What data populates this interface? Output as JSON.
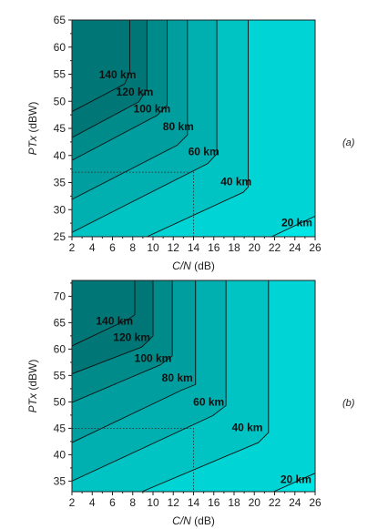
{
  "colors": {
    "bands": [
      "#00E5E5",
      "#00D4D4",
      "#00C3C3",
      "#00B0B0",
      "#009E9E",
      "#008B8B",
      "#007676"
    ],
    "contour_line": "#111111",
    "axis": "#222222",
    "dotted_marker": "#333333"
  },
  "chart_data": [
    {
      "type": "contour",
      "panel_tag": "(a)",
      "xlabel_var": "C/N",
      "xlabel_unit": " (dB)",
      "ylabel_var": "PTx",
      "ylabel_unit": " (dBW)",
      "xlim": [
        2,
        26
      ],
      "ylim": [
        25,
        65
      ],
      "x_ticks": [
        "2",
        "4",
        "6",
        "8",
        "10",
        "12",
        "14",
        "16",
        "18",
        "20",
        "22",
        "24",
        "26"
      ],
      "y_ticks": [
        "25",
        "30",
        "35",
        "40",
        "45",
        "50",
        "55",
        "60",
        "65"
      ],
      "grid": false,
      "contours": [
        {
          "label": "20 km",
          "points": [
            [
              21.7,
              25
            ],
            [
              26,
              28.8
            ]
          ]
        },
        {
          "label": "40 km",
          "points": [
            [
              9.4,
              25
            ],
            [
              18.9,
              33.2
            ],
            [
              19.4,
              34.2
            ],
            [
              19.4,
              65
            ]
          ]
        },
        {
          "label": "60 km",
          "points": [
            [
              2,
              25.8
            ],
            [
              15.4,
              38.5
            ],
            [
              16.3,
              40.3
            ],
            [
              16.3,
              65
            ]
          ]
        },
        {
          "label": "80 km",
          "points": [
            [
              2,
              31.9
            ],
            [
              12.4,
              41.9
            ],
            [
              13.4,
              43.8
            ],
            [
              13.4,
              65
            ]
          ]
        },
        {
          "label": "100 km",
          "points": [
            [
              2,
              39.1
            ],
            [
              10.4,
              47.4
            ],
            [
              11.4,
              49.3
            ],
            [
              11.4,
              65
            ]
          ]
        },
        {
          "label": "120 km",
          "points": [
            [
              2,
              43.3
            ],
            [
              8.6,
              49.9
            ],
            [
              9.4,
              52.2
            ],
            [
              9.4,
              65
            ]
          ]
        },
        {
          "label": "140 km",
          "points": [
            [
              2,
              48.1
            ],
            [
              7.2,
              53.2
            ],
            [
              7.7,
              55.3
            ],
            [
              7.7,
              65
            ]
          ]
        }
      ],
      "label_positions": [
        {
          "text": "20 km",
          "x": 24.2,
          "y": 27.5
        },
        {
          "text": "40 km",
          "x": 18.2,
          "y": 35.0
        },
        {
          "text": "60 km",
          "x": 15.0,
          "y": 40.6
        },
        {
          "text": "80 km",
          "x": 12.5,
          "y": 45.2
        },
        {
          "text": "100 km",
          "x": 9.9,
          "y": 48.5
        },
        {
          "text": "120 km",
          "x": 8.2,
          "y": 51.6
        },
        {
          "text": "140 km",
          "x": 6.5,
          "y": 54.8
        }
      ],
      "dotted_marker": {
        "x": 14,
        "y": 36.9
      }
    },
    {
      "type": "contour",
      "panel_tag": "(b)",
      "xlabel_var": "C/N",
      "xlabel_unit": " (dB)",
      "ylabel_var": "PTx",
      "ylabel_unit": " (dBW)",
      "xlim": [
        2,
        26
      ],
      "ylim": [
        33,
        73
      ],
      "x_ticks": [
        "2",
        "4",
        "6",
        "8",
        "10",
        "12",
        "14",
        "16",
        "18",
        "20",
        "22",
        "24",
        "26"
      ],
      "y_ticks": [
        "35",
        "40",
        "45",
        "50",
        "55",
        "60",
        "65",
        "70"
      ],
      "grid": false,
      "contours": [
        {
          "label": "20 km",
          "points": [
            [
              21.9,
              33
            ],
            [
              26,
              36.5
            ]
          ]
        },
        {
          "label": "40 km",
          "points": [
            [
              8.9,
              33
            ],
            [
              20.4,
              42.3
            ],
            [
              21.4,
              44.2
            ],
            [
              21.4,
              73
            ]
          ]
        },
        {
          "label": "60 km",
          "points": [
            [
              2,
              35.0
            ],
            [
              15.9,
              47.4
            ],
            [
              17.2,
              49.3
            ],
            [
              17.2,
              73
            ]
          ]
        },
        {
          "label": "80 km",
          "points": [
            [
              2,
              42.3
            ],
            [
              12.8,
              52.2
            ],
            [
              14.2,
              53.3
            ],
            [
              14.2,
              73
            ]
          ]
        },
        {
          "label": "100 km",
          "points": [
            [
              2,
              49.9
            ],
            [
              10.7,
              57.0
            ],
            [
              11.9,
              58.7
            ],
            [
              11.9,
              73
            ]
          ]
        },
        {
          "label": "120 km",
          "points": [
            [
              2,
              55.3
            ],
            [
              8.9,
              60.4
            ],
            [
              10.0,
              62.5
            ],
            [
              10.0,
              73
            ]
          ]
        },
        {
          "label": "140 km",
          "points": [
            [
              2,
              60.6
            ],
            [
              7.6,
              65.7
            ],
            [
              8.2,
              66.5
            ],
            [
              8.2,
              73
            ]
          ]
        }
      ],
      "label_positions": [
        {
          "text": "20 km",
          "x": 24.1,
          "y": 35.2
        },
        {
          "text": "40 km",
          "x": 19.3,
          "y": 45.0
        },
        {
          "text": "60 km",
          "x": 15.5,
          "y": 49.8
        },
        {
          "text": "80 km",
          "x": 12.4,
          "y": 54.4
        },
        {
          "text": "100 km",
          "x": 10.0,
          "y": 58.1
        },
        {
          "text": "120 km",
          "x": 7.9,
          "y": 62.1
        },
        {
          "text": "140 km",
          "x": 6.2,
          "y": 65.2
        }
      ],
      "dotted_marker": {
        "x": 14,
        "y": 45
      }
    }
  ]
}
